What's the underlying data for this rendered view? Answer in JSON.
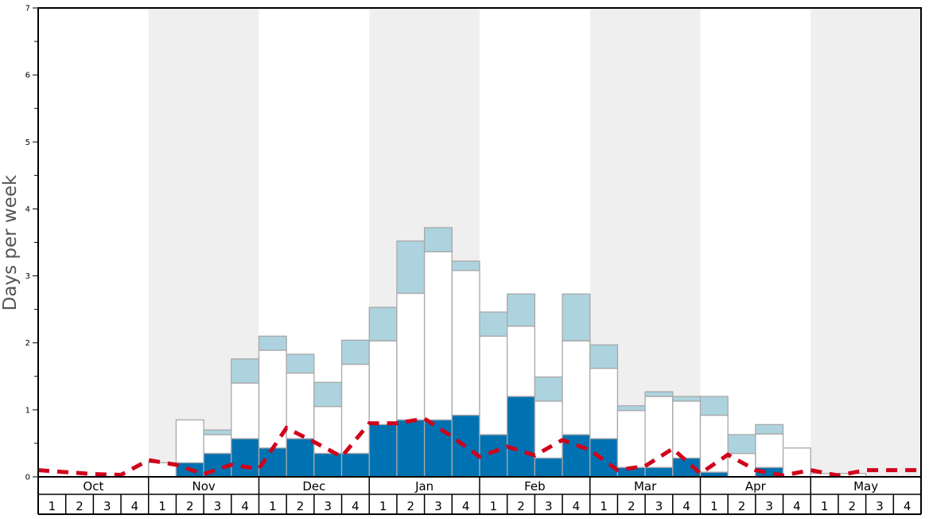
{
  "chart_data": {
    "type": "bar",
    "stacked": true,
    "title": "",
    "xlabel": "",
    "ylabel": "Days per week",
    "ylim": [
      0,
      7
    ],
    "yticks": [
      0,
      1,
      2,
      3,
      4,
      5,
      6,
      7
    ],
    "months": [
      "Oct",
      "Nov",
      "Dec",
      "Jan",
      "Feb",
      "Mar",
      "Apr",
      "May"
    ],
    "weeks_per_month": [
      "1",
      "2",
      "3",
      "4"
    ],
    "categories": [
      "Oct 1",
      "Oct 2",
      "Oct 3",
      "Oct 4",
      "Nov 1",
      "Nov 2",
      "Nov 3",
      "Nov 4",
      "Dec 1",
      "Dec 2",
      "Dec 3",
      "Dec 4",
      "Jan 1",
      "Jan 2",
      "Jan 3",
      "Jan 4",
      "Feb 1",
      "Feb 2",
      "Feb 3",
      "Feb 4",
      "Mar 1",
      "Mar 2",
      "Mar 3",
      "Mar 4",
      "Apr 1",
      "Apr 2",
      "Apr 3",
      "Apr 4",
      "May 1",
      "May 2",
      "May 3",
      "May 4"
    ],
    "series": [
      {
        "name": "dark-blue",
        "color": "#0072b2",
        "values": [
          0,
          0,
          0,
          0,
          0,
          0.21,
          0.35,
          0.57,
          0.43,
          0.57,
          0.35,
          0.35,
          0.78,
          0.85,
          0.85,
          0.92,
          0.63,
          1.2,
          0.28,
          0.63,
          0.57,
          0.14,
          0.14,
          0.28,
          0.07,
          0,
          0.14,
          0,
          0,
          0,
          0,
          0
        ]
      },
      {
        "name": "white",
        "color": "#ffffff",
        "values": [
          0,
          0,
          0,
          0,
          0.21,
          0.64,
          0.28,
          0.83,
          1.46,
          0.98,
          0.7,
          1.33,
          1.25,
          1.89,
          2.51,
          2.16,
          1.47,
          1.05,
          0.85,
          1.4,
          1.05,
          0.85,
          1.06,
          0.85,
          0.85,
          0.35,
          0.5,
          0.43,
          0.05,
          0.05,
          0,
          0
        ]
      },
      {
        "name": "light-blue",
        "color": "#add3df",
        "values": [
          0,
          0,
          0,
          0,
          0,
          0,
          0.07,
          0.36,
          0.21,
          0.28,
          0.36,
          0.36,
          0.5,
          0.78,
          0.36,
          0.14,
          0.36,
          0.48,
          0.36,
          0.7,
          0.35,
          0.07,
          0.07,
          0.07,
          0.28,
          0.28,
          0.14,
          0,
          0,
          0,
          0,
          0
        ]
      }
    ],
    "average_line": {
      "name": "average",
      "color": "#d0021b",
      "style": "dashed",
      "x_positions": "week boundaries (33 points)",
      "values": [
        0.1,
        0.07,
        0.04,
        0.03,
        0.25,
        0.18,
        0.04,
        0.18,
        0.12,
        0.73,
        0.52,
        0.3,
        0.8,
        0.8,
        0.87,
        0.6,
        0.3,
        0.45,
        0.32,
        0.55,
        0.4,
        0.1,
        0.16,
        0.42,
        0.05,
        0.33,
        0.1,
        0.02,
        0.1,
        0.02,
        0.1,
        0.1,
        0.1
      ]
    },
    "month_shading": [
      "#ffffff",
      "#efefef",
      "#ffffff",
      "#efefef",
      "#ffffff",
      "#efefef",
      "#ffffff",
      "#efefef"
    ],
    "grid": false,
    "legend": "none"
  },
  "axis": {
    "ylabel": "Days per week",
    "ytick_labels": [
      "0",
      "1",
      "2",
      "3",
      "4",
      "5",
      "6",
      "7"
    ]
  }
}
